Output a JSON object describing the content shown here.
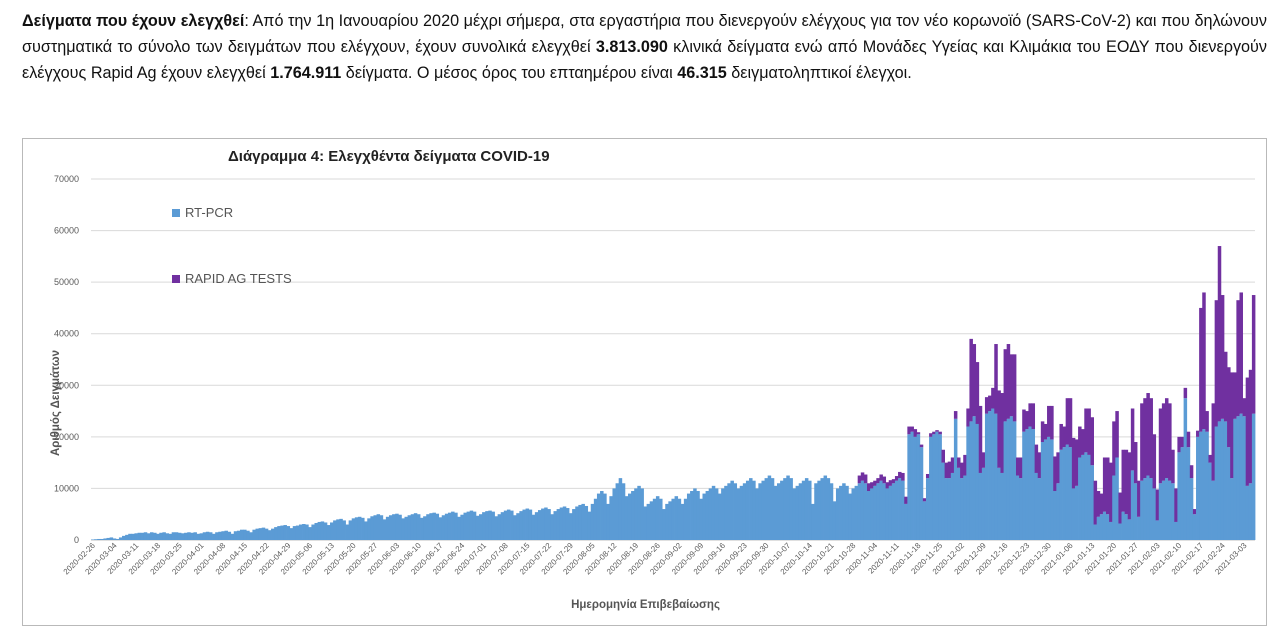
{
  "paragraph": {
    "heading": "Δείγματα που έχουν ελεγχθεί",
    "text_1": ":  Από την 1η Ιανουαρίου 2020 μέχρι σήμερα, στα εργαστήρια που διενεργούν ελέγχους για τον νέο κορωνοϊό (SARS-CoV-2) και που δηλώνουν συστηματικά το σύνολο των δειγμάτων που ελέγχουν, έχουν συνολικά ελεγχθεί ",
    "pcr_total": "3.813.090",
    "text_2": " κλινικά δείγματα ενώ από Μονάδες Υγείας και Κλιμάκια του ΕΟΔΥ που διενεργούν ελέγχους Rapid Ag έχουν ελεγχθεί ",
    "rapid_total": "1.764.911",
    "text_3": " δείγματα. Ο μέσος όρος του επταημέρου είναι ",
    "weekly_avg": "46.315",
    "text_4": " δειγματοληπτικοί έλεγχοι."
  },
  "chart_data": {
    "type": "bar",
    "stacked": true,
    "title": "Διάγραμμα 4: Ελεγχθέντα δείγματα COVID-19",
    "xlabel": "Ημερομηνία Επιβεβαίωσης",
    "ylabel": "Αριθμός Δειγμάτων",
    "ylim": [
      0,
      70000
    ],
    "yticks": [
      "0",
      "10000",
      "20000",
      "30000",
      "40000",
      "50000",
      "60000",
      "70000"
    ],
    "grid": true,
    "legend_position": "top-left",
    "x_start": "2020-02-26",
    "x_end": "2021-03-06",
    "x_tick_labels": [
      "2020-02-26",
      "2020-03-04",
      "2020-03-11",
      "2020-03-18",
      "2020-03-25",
      "2020-04-01",
      "2020-04-08",
      "2020-04-15",
      "2020-04-22",
      "2020-04-29",
      "2020-05-06",
      "2020-05-13",
      "2020-05-20",
      "2020-05-27",
      "2020-06-03",
      "2020-06-10",
      "2020-06-17",
      "2020-06-24",
      "2020-07-01",
      "2020-07-08",
      "2020-07-15",
      "2020-07-22",
      "2020-07-29",
      "2020-08-05",
      "2020-08-12",
      "2020-08-19",
      "2020-08-26",
      "2020-09-02",
      "2020-09-09",
      "2020-09-16",
      "2020-09-23",
      "2020-09-30",
      "2020-10-07",
      "2020-10-14",
      "2020-10-21",
      "2020-10-28",
      "2020-11-04",
      "2020-11-11",
      "2020-11-18",
      "2020-11-25",
      "2020-12-02",
      "2020-12-09",
      "2020-12-16",
      "2020-12-23",
      "2020-12-30",
      "2021-01-06",
      "2021-01-13",
      "2021-01-20",
      "2021-01-27",
      "2021-02-03",
      "2021-02-10",
      "2021-02-17",
      "2021-02-24",
      "2021-03-03"
    ],
    "series": [
      {
        "name": "RT-PCR",
        "color": "#5b9bd5",
        "values": [
          100,
          150,
          200,
          200,
          300,
          400,
          500,
          300,
          200,
          500,
          800,
          1000,
          1200,
          1200,
          1300,
          1400,
          1400,
          1500,
          1300,
          1500,
          1400,
          1200,
          1400,
          1500,
          1300,
          1200,
          1500,
          1500,
          1400,
          1300,
          1400,
          1500,
          1400,
          1500,
          1200,
          1300,
          1500,
          1600,
          1500,
          1200,
          1500,
          1600,
          1700,
          1800,
          1600,
          1200,
          1700,
          1800,
          2000,
          2000,
          1800,
          1500,
          2000,
          2200,
          2300,
          2400,
          2200,
          1900,
          2200,
          2500,
          2700,
          2800,
          2900,
          2700,
          2300,
          2700,
          2800,
          3000,
          3100,
          3000,
          2500,
          3000,
          3300,
          3500,
          3600,
          3400,
          2900,
          3400,
          3800,
          4000,
          4100,
          3800,
          3000,
          3800,
          4200,
          4400,
          4500,
          4300,
          3600,
          4200,
          4600,
          4800,
          5000,
          4800,
          4000,
          4500,
          4800,
          5000,
          5100,
          4900,
          4200,
          4500,
          4800,
          5000,
          5200,
          5000,
          4300,
          4600,
          5000,
          5200,
          5300,
          5100,
          4400,
          4800,
          5100,
          5300,
          5500,
          5300,
          4500,
          4900,
          5300,
          5500,
          5700,
          5500,
          4700,
          5000,
          5400,
          5600,
          5700,
          5500,
          4600,
          5000,
          5400,
          5700,
          5900,
          5700,
          4800,
          5200,
          5600,
          5900,
          6100,
          5900,
          4900,
          5400,
          5800,
          6100,
          6300,
          6000,
          5000,
          5600,
          6000,
          6300,
          6500,
          6200,
          5200,
          6000,
          6500,
          6800,
          7000,
          6600,
          5500,
          7000,
          8000,
          9000,
          9500,
          9000,
          7000,
          8500,
          10000,
          11000,
          12000,
          11000,
          8500,
          9000,
          9500,
          10000,
          10500,
          10000,
          6500,
          7000,
          7500,
          8000,
          8500,
          8000,
          6000,
          7000,
          7500,
          8000,
          8500,
          8000,
          7000,
          8000,
          9000,
          9500,
          10000,
          9500,
          8000,
          9000,
          9500,
          10000,
          10500,
          10000,
          9000,
          10000,
          10500,
          11000,
          11500,
          11000,
          10000,
          10500,
          11000,
          11500,
          12000,
          11500,
          10000,
          11000,
          11500,
          12000,
          12500,
          12000,
          10500,
          11000,
          11500,
          12000,
          12500,
          12000,
          10000,
          10500,
          11000,
          11500,
          12000,
          11500,
          7000,
          11000,
          11500,
          12000,
          12500,
          12000,
          11000,
          7500,
          10000,
          10500,
          11000,
          10500,
          9000,
          10000,
          10500,
          11000,
          11500,
          11000,
          9500,
          10000,
          10500,
          11000,
          11500,
          11000,
          10000,
          10500,
          11000,
          11500,
          12000,
          11500,
          7000,
          20500,
          21000,
          20000,
          20500,
          18000,
          7500,
          12000,
          20000,
          20500,
          21000,
          20500,
          15000,
          12000,
          12000,
          13000,
          23500,
          14000,
          12000,
          12500,
          22000,
          23000,
          24000,
          22500,
          13000,
          14000,
          24500,
          25000,
          25500,
          24500,
          14000,
          13000,
          23000,
          23500,
          24000,
          23000,
          12500,
          12000,
          21000,
          21500,
          22000,
          21500,
          13000,
          12000,
          19000,
          19500,
          20000,
          19500,
          9500,
          11000,
          17500,
          18000,
          18500,
          18000,
          10000,
          10500,
          16000,
          16500,
          17000,
          16500,
          14500,
          3000,
          4500,
          5000,
          5500,
          5000,
          3500,
          12500,
          16000,
          3200,
          5500,
          5000,
          4000,
          13500,
          11000,
          4500,
          11500,
          12000,
          12500,
          12000,
          10000,
          3800,
          11000,
          11500,
          12000,
          11500,
          11000,
          3500,
          17000,
          18000,
          27500,
          18000,
          12000,
          5000,
          20000,
          21000,
          21500,
          21000,
          15000,
          11500,
          22000,
          23000,
          23500,
          23000,
          18000,
          12000,
          23500,
          24000,
          24500,
          24000,
          10500,
          11000,
          24500,
          25500,
          26500,
          24500,
          13500,
          12000
        ]
      },
      {
        "name": "RAPID AG TESTS",
        "color": "#7030a0",
        "values": [
          0,
          0,
          0,
          0,
          0,
          0,
          0,
          0,
          0,
          0,
          0,
          0,
          0,
          0,
          0,
          0,
          0,
          0,
          0,
          0,
          0,
          0,
          0,
          0,
          0,
          0,
          0,
          0,
          0,
          0,
          0,
          0,
          0,
          0,
          0,
          0,
          0,
          0,
          0,
          0,
          0,
          0,
          0,
          0,
          0,
          0,
          0,
          0,
          0,
          0,
          0,
          0,
          0,
          0,
          0,
          0,
          0,
          0,
          0,
          0,
          0,
          0,
          0,
          0,
          0,
          0,
          0,
          0,
          0,
          0,
          0,
          0,
          0,
          0,
          0,
          0,
          0,
          0,
          0,
          0,
          0,
          0,
          0,
          0,
          0,
          0,
          0,
          0,
          0,
          0,
          0,
          0,
          0,
          0,
          0,
          0,
          0,
          0,
          0,
          0,
          0,
          0,
          0,
          0,
          0,
          0,
          0,
          0,
          0,
          0,
          0,
          0,
          0,
          0,
          0,
          0,
          0,
          0,
          0,
          0,
          0,
          0,
          0,
          0,
          0,
          0,
          0,
          0,
          0,
          0,
          0,
          0,
          0,
          0,
          0,
          0,
          0,
          0,
          0,
          0,
          0,
          0,
          0,
          0,
          0,
          0,
          0,
          0,
          0,
          0,
          0,
          0,
          0,
          0,
          0,
          0,
          0,
          0,
          0,
          0,
          0,
          0,
          0,
          0,
          0,
          0,
          0,
          0,
          0,
          0,
          0,
          0,
          0,
          0,
          0,
          0,
          0,
          0,
          0,
          0,
          0,
          0,
          0,
          0,
          0,
          0,
          0,
          0,
          0,
          0,
          0,
          0,
          0,
          0,
          0,
          0,
          0,
          0,
          0,
          0,
          0,
          0,
          0,
          0,
          0,
          0,
          0,
          0,
          0,
          0,
          0,
          0,
          0,
          0,
          0,
          0,
          0,
          0,
          0,
          0,
          0,
          0,
          0,
          0,
          0,
          0,
          0,
          0,
          0,
          0,
          0,
          0,
          0,
          0,
          0,
          0,
          0,
          0,
          0,
          0,
          0,
          0,
          0,
          0,
          0,
          0,
          0,
          1500,
          1600,
          1700,
          1500,
          1200,
          1000,
          1000,
          1200,
          1300,
          1200,
          1100,
          800,
          900,
          1200,
          1500,
          1400,
          1500,
          1000,
          1500,
          400,
          500,
          600,
          800,
          700,
          500,
          300,
          500,
          2500,
          3000,
          3200,
          3000,
          1500,
          2000,
          3000,
          4000,
          3500,
          16000,
          14000,
          12000,
          13000,
          3000,
          3200,
          3000,
          4000,
          13500,
          15000,
          15500,
          14000,
          14500,
          12000,
          13000,
          3500,
          4000,
          4300,
          3500,
          4500,
          5000,
          5500,
          5000,
          4000,
          3000,
          6000,
          6500,
          6700,
          6000,
          5000,
          4000,
          9000,
          9500,
          9800,
          9000,
          6000,
          5000,
          8500,
          9000,
          9300,
          8500,
          5000,
          4000,
          10500,
          11000,
          11500,
          10500,
          9000,
          6000,
          12000,
          12500,
          13000,
          12000,
          8000,
          7000,
          15000,
          15500,
          16000,
          15500,
          10500,
          6000,
          14500,
          15000,
          15500,
          15000,
          6500,
          6500,
          3000,
          2000,
          2000,
          3000,
          2500,
          1000,
          1200,
          24000,
          26500,
          4000,
          1500,
          15000,
          24500,
          34000,
          24000,
          13500,
          15500,
          20500,
          9000,
          22500,
          23500,
          3500,
          21000,
          22000,
          23000,
          21000,
          20000,
          6000,
          17000,
          18500,
          3000,
          17500,
          16500,
          7500,
          28000,
          27500,
          18000,
          24000,
          23000,
          12000,
          25500,
          26000,
          33500,
          25000,
          19000,
          19000,
          30000,
          31000,
          20000,
          30500,
          20000,
          31000,
          31500,
          31500,
          26000,
          27000,
          13000,
          24500,
          34500,
          31000,
          29500,
          31500,
          6500,
          7000
        ]
      }
    ]
  }
}
